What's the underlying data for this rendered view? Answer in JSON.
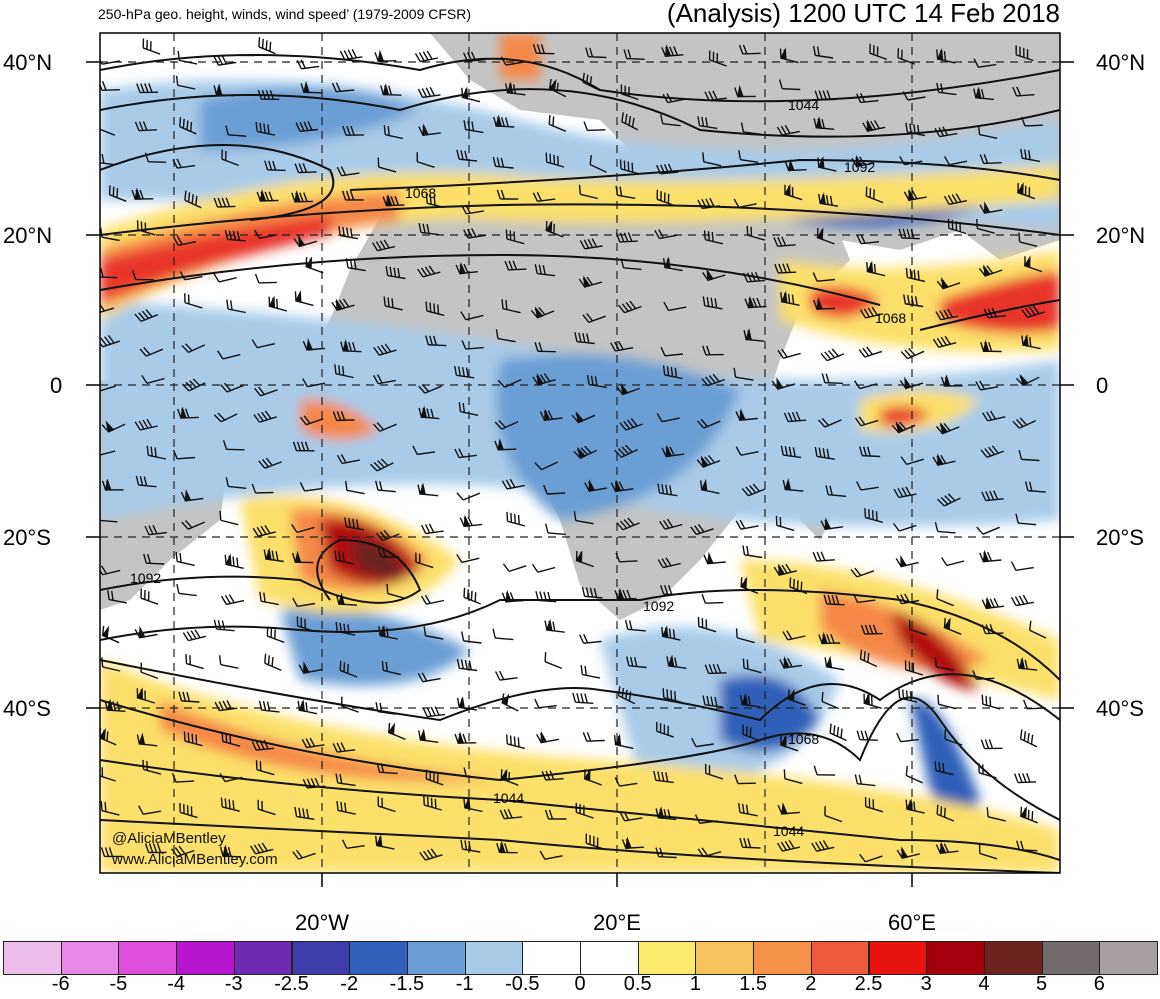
{
  "header": {
    "left_title": "250-hPa geo. height, winds, wind speed’ (1979-2009 CFSR)",
    "right_title": "(Analysis) 1200 UTC 14 Feb 2018"
  },
  "map": {
    "lat_labels": [
      "40°N",
      "20°N",
      "0",
      "20°S",
      "40°S"
    ],
    "lon_labels": [
      "20°W",
      "20°E",
      "60°E"
    ],
    "contour_labels": [
      "1044",
      "1068",
      "1092",
      "1068",
      "1092",
      "1092",
      "1068",
      "1044",
      "1044"
    ],
    "credit_line1": "@AliciaMBentley",
    "credit_line2": "www.AliciaMBentley.com",
    "colors": {
      "land": "#c4c4c4",
      "jet_core": "#b30f0f",
      "jet_strong": "#e8342b",
      "jet_mid": "#f4884a",
      "jet_weak": "#fde06b",
      "neg_weak": "#a9cbe8",
      "neg_mid": "#6b9fd6",
      "neg_strong": "#2f61b8"
    }
  },
  "colorbar": {
    "labels": [
      "-6",
      "-5",
      "-4",
      "-3",
      "-2.5",
      "-2",
      "-1.5",
      "-1",
      "-0.5",
      "0",
      "0.5",
      "1",
      "1.5",
      "2",
      "2.5",
      "3",
      "4",
      "5",
      "6"
    ],
    "colors": [
      "#ecbde9",
      "#e888e6",
      "#dc4fdb",
      "#b516ce",
      "#6f2bb4",
      "#3f3daa",
      "#2f61b8",
      "#6b9fd6",
      "#a9cbe8",
      "#ffffff",
      "#ffffff",
      "#fde96b",
      "#f7c35c",
      "#f4924a",
      "#ee5b3c",
      "#e8140f",
      "#a3000b",
      "#6c2320",
      "#736b6b",
      "#a8a0a0"
    ]
  }
}
